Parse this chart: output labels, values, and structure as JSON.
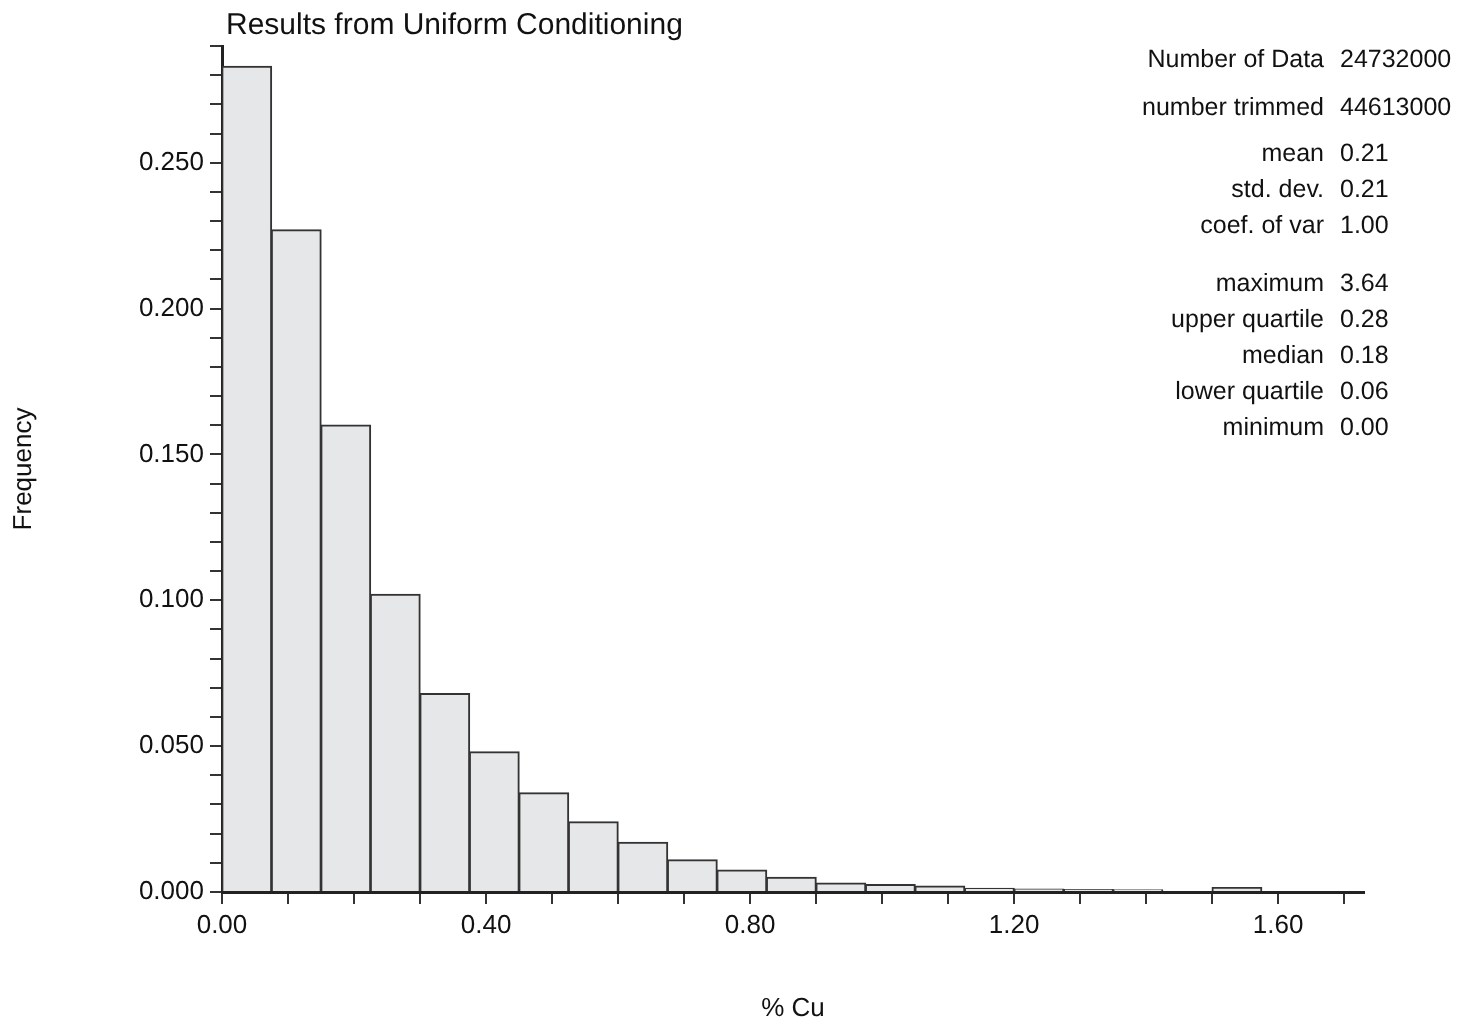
{
  "chart_data": {
    "type": "histogram",
    "title": "Results from Uniform Conditioning",
    "xlabel": "% Cu",
    "ylabel": "Frequency",
    "bins": [
      0,
      0.075,
      0.15,
      0.225,
      0.3,
      0.375,
      0.45,
      0.525,
      0.6,
      0.675,
      0.75,
      0.825,
      0.9,
      0.975,
      1.05,
      1.125,
      1.2,
      1.275,
      1.35,
      1.425,
      1.5,
      1.575,
      1.65,
      1.725
    ],
    "values": [
      0.283,
      0.227,
      0.16,
      0.102,
      0.068,
      0.048,
      0.034,
      0.024,
      0.017,
      0.011,
      0.0075,
      0.005,
      0.003,
      0.0025,
      0.002,
      0.0012,
      0.001,
      0.0008,
      0.0007,
      null,
      0.0015,
      null,
      null
    ],
    "color": "#e6e7e8",
    "xlim": [
      0,
      1.73
    ],
    "xticks": [
      {
        "value": 0,
        "label": "0.00"
      },
      {
        "value": 0.1,
        "label": null
      },
      {
        "value": 0.2,
        "label": null
      },
      {
        "value": 0.3,
        "label": null
      },
      {
        "value": 0.4,
        "label": "0.40"
      },
      {
        "value": 0.5,
        "label": null
      },
      {
        "value": 0.6,
        "label": null
      },
      {
        "value": 0.7,
        "label": null
      },
      {
        "value": 0.8,
        "label": "0.80"
      },
      {
        "value": 0.9,
        "label": null
      },
      {
        "value": 1.0,
        "label": null
      },
      {
        "value": 1.1,
        "label": null
      },
      {
        "value": 1.2,
        "label": "1.20"
      },
      {
        "value": 1.3,
        "label": null
      },
      {
        "value": 1.4,
        "label": null
      },
      {
        "value": 1.5,
        "label": null
      },
      {
        "value": 1.6,
        "label": "1.60"
      },
      {
        "value": 1.7,
        "label": null
      }
    ],
    "ylim": [
      0,
      0.29
    ],
    "yticks": [
      {
        "value": 0,
        "label": "0.000"
      },
      {
        "value": 0.01,
        "label": null
      },
      {
        "value": 0.02,
        "label": null
      },
      {
        "value": 0.03,
        "label": null
      },
      {
        "value": 0.04,
        "label": null
      },
      {
        "value": 0.05,
        "label": "0.050"
      },
      {
        "value": 0.06,
        "label": null
      },
      {
        "value": 0.07,
        "label": null
      },
      {
        "value": 0.08,
        "label": null
      },
      {
        "value": 0.09,
        "label": null
      },
      {
        "value": 0.1,
        "label": "0.100"
      },
      {
        "value": 0.11,
        "label": null
      },
      {
        "value": 0.12,
        "label": null
      },
      {
        "value": 0.13,
        "label": null
      },
      {
        "value": 0.14,
        "label": null
      },
      {
        "value": 0.15,
        "label": "0.150"
      },
      {
        "value": 0.16,
        "label": null
      },
      {
        "value": 0.17,
        "label": null
      },
      {
        "value": 0.18,
        "label": null
      },
      {
        "value": 0.19,
        "label": null
      },
      {
        "value": 0.2,
        "label": "0.200"
      },
      {
        "value": 0.21,
        "label": null
      },
      {
        "value": 0.22,
        "label": null
      },
      {
        "value": 0.23,
        "label": null
      },
      {
        "value": 0.24,
        "label": null
      },
      {
        "value": 0.25,
        "label": "0.250"
      },
      {
        "value": 0.26,
        "label": null
      },
      {
        "value": 0.27,
        "label": null
      },
      {
        "value": 0.28,
        "label": null
      },
      {
        "value": 0.29,
        "label": null
      }
    ],
    "grid": false,
    "legend": false,
    "annotations": [
      "Number of Data 24732000",
      "number trimmed 44613000",
      "mean 0.21",
      "std. dev. 0.21",
      "coef. of var 1.00",
      "maximum 3.64",
      "upper quartile 0.28",
      "median 0.18",
      "lower quartile 0.06",
      "minimum 0.00"
    ]
  }
}
